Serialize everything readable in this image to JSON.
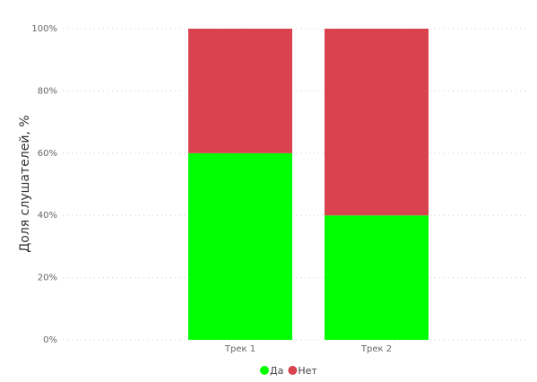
{
  "chart_data": {
    "type": "stacked_bar",
    "y_label": "Доля слушателей, %",
    "categories": [
      "Трек 1",
      "Трек 2"
    ],
    "series": [
      {
        "name": "Да",
        "color": "#00ff00",
        "values": [
          60,
          40
        ]
      },
      {
        "name": "Нет",
        "color": "#d9434f",
        "values": [
          40,
          60
        ]
      }
    ],
    "ylim": [
      0,
      100
    ],
    "yticks": [
      {
        "value": 0,
        "label": "0%"
      },
      {
        "value": 20,
        "label": "20%"
      },
      {
        "value": 40,
        "label": "40%"
      },
      {
        "value": 60,
        "label": "60%"
      },
      {
        "value": 80,
        "label": "80%"
      },
      {
        "value": 100,
        "label": "100%"
      }
    ],
    "grid": true,
    "legend": "bottom"
  }
}
